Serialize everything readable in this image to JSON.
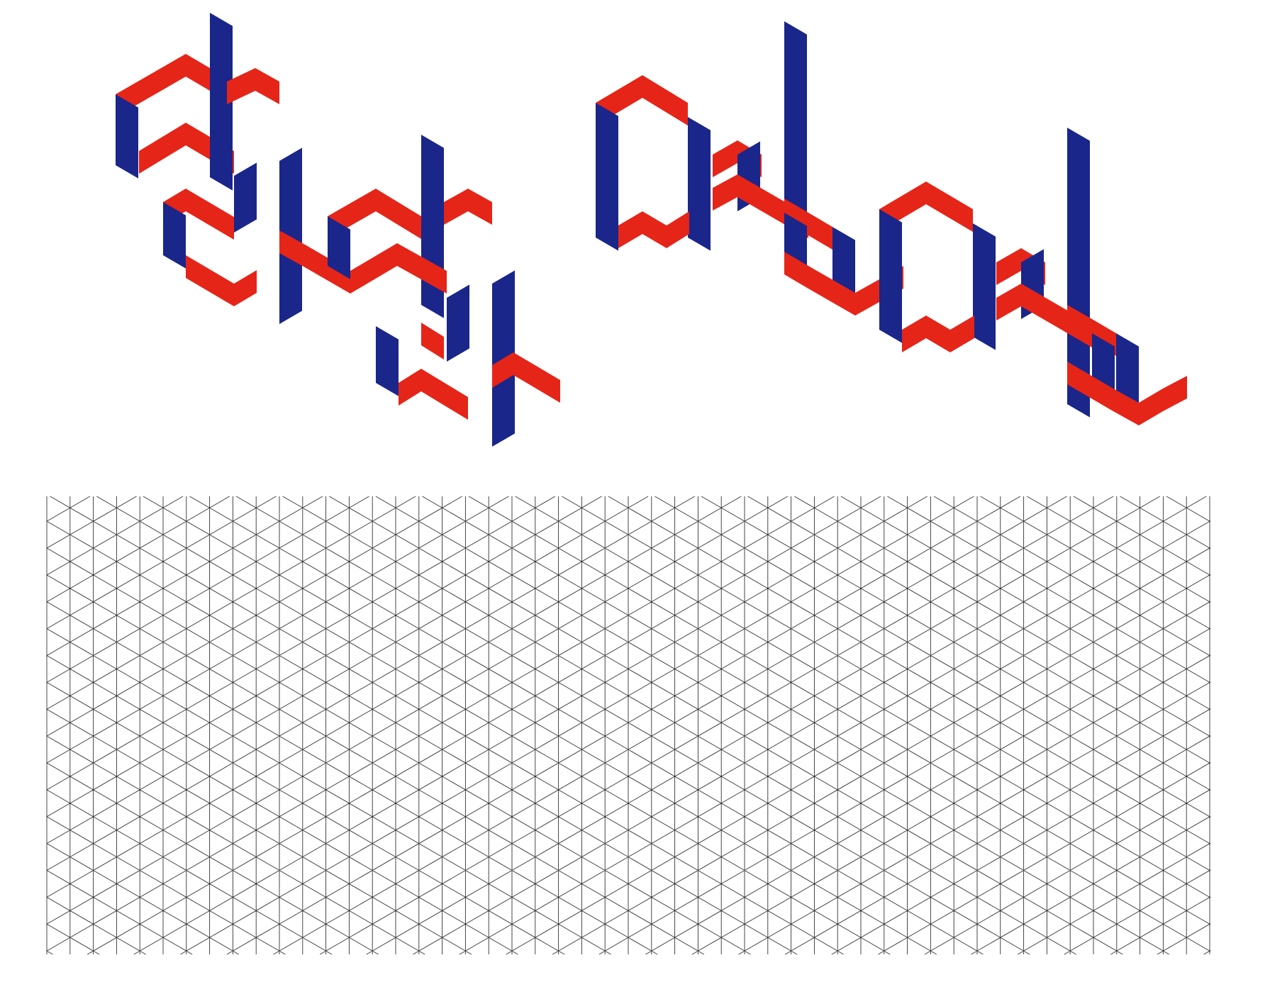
{
  "colors": {
    "background": "#ffffff",
    "red": "#e52518",
    "blue": "#1a268a",
    "grid_line": "#333333"
  },
  "icons": {
    "top": "isometric-lettering-illustration",
    "bottom": "isometric-triangle-grid"
  }
}
